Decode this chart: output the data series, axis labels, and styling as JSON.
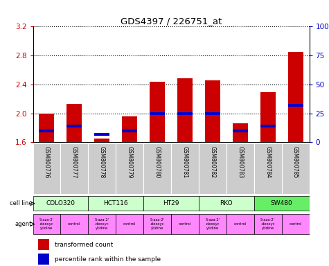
{
  "title": "GDS4397 / 226751_at",
  "samples": [
    "GSM800776",
    "GSM800777",
    "GSM800778",
    "GSM800779",
    "GSM800780",
    "GSM800781",
    "GSM800782",
    "GSM800783",
    "GSM800784",
    "GSM800785"
  ],
  "red_values": [
    2.0,
    2.13,
    1.65,
    1.96,
    2.44,
    2.49,
    2.46,
    1.86,
    2.29,
    2.85
  ],
  "blue_pct": [
    10,
    14,
    7,
    10,
    25,
    25,
    25,
    10,
    14,
    32
  ],
  "ylim_left": [
    1.6,
    3.2
  ],
  "ylim_right": [
    0,
    100
  ],
  "yticks_left": [
    1.6,
    2.0,
    2.4,
    2.8,
    3.2
  ],
  "yticks_right": [
    0,
    25,
    50,
    75,
    100
  ],
  "ytick_labels_right": [
    "0",
    "25",
    "50",
    "75",
    "100%"
  ],
  "cell_lines": [
    "COLO320",
    "HCT116",
    "HT29",
    "RKO",
    "SW480"
  ],
  "cell_line_spans": [
    [
      0,
      1
    ],
    [
      2,
      3
    ],
    [
      4,
      5
    ],
    [
      6,
      7
    ],
    [
      8,
      9
    ]
  ],
  "cell_line_colors": [
    "#ccffcc",
    "#ccffcc",
    "#ccffcc",
    "#ccffcc",
    "#66ee66"
  ],
  "agent_labels": [
    "5-aza-2'\n-deoxyc\nytidine",
    "control",
    "5-aza-2'\n-deoxyc\nytidine",
    "control",
    "5-aza-2'\n-deoxyc\nytidine",
    "control",
    "5-aza-2'\n-deoxyc\nytidine",
    "control",
    "5-aza-2'\n-deoxyc\nytidine",
    "control"
  ],
  "agent_colors": [
    "#ff88ff",
    "#ff88ff",
    "#ff88ff",
    "#ff88ff",
    "#ff88ff",
    "#ff88ff",
    "#ff88ff",
    "#ff88ff",
    "#ff88ff",
    "#ff88ff"
  ],
  "bar_color": "#cc0000",
  "blue_color": "#0000cc",
  "tick_color_left": "#cc0000",
  "tick_color_right": "#0000cc",
  "bar_bottom": 1.6,
  "bar_width": 0.55,
  "sample_box_color": "#cccccc"
}
